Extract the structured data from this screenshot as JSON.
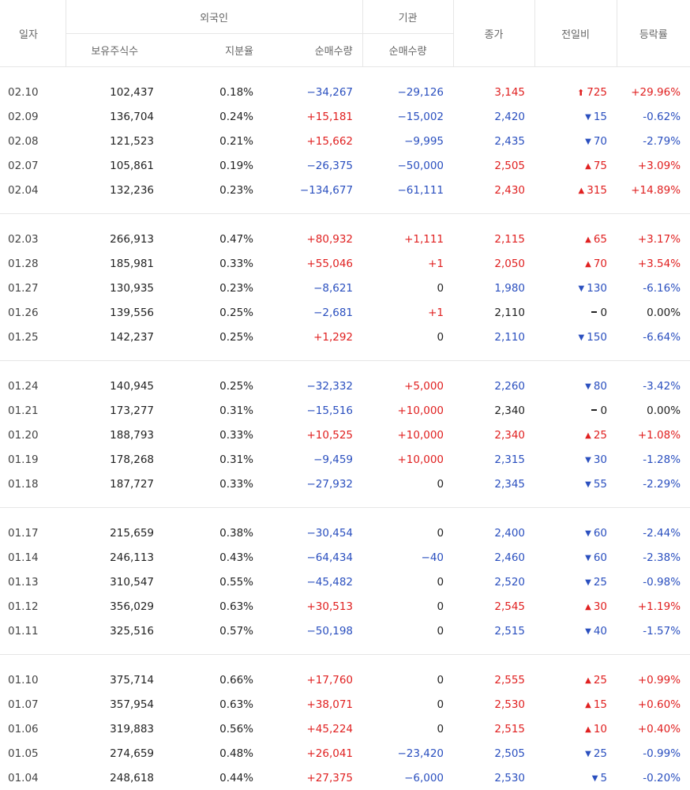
{
  "headers": {
    "date": "일자",
    "foreign": "외국인",
    "institution": "기관",
    "close": "종가",
    "change": "전일비",
    "rate": "등락률",
    "holdings": "보유주식수",
    "share": "지분율",
    "foreign_net": "순매수량",
    "inst_net": "순매수량"
  },
  "colors": {
    "up": "#e02020",
    "down": "#2a4fbf",
    "flat": "#222222"
  },
  "groups": [
    [
      {
        "date": "02.10",
        "holdings": "102,437",
        "share": "0.18%",
        "fnet": "−34,267",
        "fdir": "down",
        "inet": "−29,126",
        "idir": "down",
        "close": "3,145",
        "cdir": "up",
        "chg": "725",
        "chgdir": "upper",
        "rate": "+29.96%",
        "rdir": "up"
      },
      {
        "date": "02.09",
        "holdings": "136,704",
        "share": "0.24%",
        "fnet": "+15,181",
        "fdir": "up",
        "inet": "−15,002",
        "idir": "down",
        "close": "2,420",
        "cdir": "down",
        "chg": "15",
        "chgdir": "down",
        "rate": "-0.62%",
        "rdir": "down"
      },
      {
        "date": "02.08",
        "holdings": "121,523",
        "share": "0.21%",
        "fnet": "+15,662",
        "fdir": "up",
        "inet": "−9,995",
        "idir": "down",
        "close": "2,435",
        "cdir": "down",
        "chg": "70",
        "chgdir": "down",
        "rate": "-2.79%",
        "rdir": "down"
      },
      {
        "date": "02.07",
        "holdings": "105,861",
        "share": "0.19%",
        "fnet": "−26,375",
        "fdir": "down",
        "inet": "−50,000",
        "idir": "down",
        "close": "2,505",
        "cdir": "up",
        "chg": "75",
        "chgdir": "up",
        "rate": "+3.09%",
        "rdir": "up"
      },
      {
        "date": "02.04",
        "holdings": "132,236",
        "share": "0.23%",
        "fnet": "−134,677",
        "fdir": "down",
        "inet": "−61,111",
        "idir": "down",
        "close": "2,430",
        "cdir": "up",
        "chg": "315",
        "chgdir": "up",
        "rate": "+14.89%",
        "rdir": "up"
      }
    ],
    [
      {
        "date": "02.03",
        "holdings": "266,913",
        "share": "0.47%",
        "fnet": "+80,932",
        "fdir": "up",
        "inet": "+1,111",
        "idir": "up",
        "close": "2,115",
        "cdir": "up",
        "chg": "65",
        "chgdir": "up",
        "rate": "+3.17%",
        "rdir": "up"
      },
      {
        "date": "01.28",
        "holdings": "185,981",
        "share": "0.33%",
        "fnet": "+55,046",
        "fdir": "up",
        "inet": "+1",
        "idir": "up",
        "close": "2,050",
        "cdir": "up",
        "chg": "70",
        "chgdir": "up",
        "rate": "+3.54%",
        "rdir": "up"
      },
      {
        "date": "01.27",
        "holdings": "130,935",
        "share": "0.23%",
        "fnet": "−8,621",
        "fdir": "down",
        "inet": "0",
        "idir": "flat",
        "close": "1,980",
        "cdir": "down",
        "chg": "130",
        "chgdir": "down",
        "rate": "-6.16%",
        "rdir": "down"
      },
      {
        "date": "01.26",
        "holdings": "139,556",
        "share": "0.25%",
        "fnet": "−2,681",
        "fdir": "down",
        "inet": "+1",
        "idir": "up",
        "close": "2,110",
        "cdir": "flat",
        "chg": "0",
        "chgdir": "flat",
        "rate": "0.00%",
        "rdir": "flat"
      },
      {
        "date": "01.25",
        "holdings": "142,237",
        "share": "0.25%",
        "fnet": "+1,292",
        "fdir": "up",
        "inet": "0",
        "idir": "flat",
        "close": "2,110",
        "cdir": "down",
        "chg": "150",
        "chgdir": "down",
        "rate": "-6.64%",
        "rdir": "down"
      }
    ],
    [
      {
        "date": "01.24",
        "holdings": "140,945",
        "share": "0.25%",
        "fnet": "−32,332",
        "fdir": "down",
        "inet": "+5,000",
        "idir": "up",
        "close": "2,260",
        "cdir": "down",
        "chg": "80",
        "chgdir": "down",
        "rate": "-3.42%",
        "rdir": "down"
      },
      {
        "date": "01.21",
        "holdings": "173,277",
        "share": "0.31%",
        "fnet": "−15,516",
        "fdir": "down",
        "inet": "+10,000",
        "idir": "up",
        "close": "2,340",
        "cdir": "flat",
        "chg": "0",
        "chgdir": "flat",
        "rate": "0.00%",
        "rdir": "flat"
      },
      {
        "date": "01.20",
        "holdings": "188,793",
        "share": "0.33%",
        "fnet": "+10,525",
        "fdir": "up",
        "inet": "+10,000",
        "idir": "up",
        "close": "2,340",
        "cdir": "up",
        "chg": "25",
        "chgdir": "up",
        "rate": "+1.08%",
        "rdir": "up"
      },
      {
        "date": "01.19",
        "holdings": "178,268",
        "share": "0.31%",
        "fnet": "−9,459",
        "fdir": "down",
        "inet": "+10,000",
        "idir": "up",
        "close": "2,315",
        "cdir": "down",
        "chg": "30",
        "chgdir": "down",
        "rate": "-1.28%",
        "rdir": "down"
      },
      {
        "date": "01.18",
        "holdings": "187,727",
        "share": "0.33%",
        "fnet": "−27,932",
        "fdir": "down",
        "inet": "0",
        "idir": "flat",
        "close": "2,345",
        "cdir": "down",
        "chg": "55",
        "chgdir": "down",
        "rate": "-2.29%",
        "rdir": "down"
      }
    ],
    [
      {
        "date": "01.17",
        "holdings": "215,659",
        "share": "0.38%",
        "fnet": "−30,454",
        "fdir": "down",
        "inet": "0",
        "idir": "flat",
        "close": "2,400",
        "cdir": "down",
        "chg": "60",
        "chgdir": "down",
        "rate": "-2.44%",
        "rdir": "down"
      },
      {
        "date": "01.14",
        "holdings": "246,113",
        "share": "0.43%",
        "fnet": "−64,434",
        "fdir": "down",
        "inet": "−40",
        "idir": "down",
        "close": "2,460",
        "cdir": "down",
        "chg": "60",
        "chgdir": "down",
        "rate": "-2.38%",
        "rdir": "down"
      },
      {
        "date": "01.13",
        "holdings": "310,547",
        "share": "0.55%",
        "fnet": "−45,482",
        "fdir": "down",
        "inet": "0",
        "idir": "flat",
        "close": "2,520",
        "cdir": "down",
        "chg": "25",
        "chgdir": "down",
        "rate": "-0.98%",
        "rdir": "down"
      },
      {
        "date": "01.12",
        "holdings": "356,029",
        "share": "0.63%",
        "fnet": "+30,513",
        "fdir": "up",
        "inet": "0",
        "idir": "flat",
        "close": "2,545",
        "cdir": "up",
        "chg": "30",
        "chgdir": "up",
        "rate": "+1.19%",
        "rdir": "up"
      },
      {
        "date": "01.11",
        "holdings": "325,516",
        "share": "0.57%",
        "fnet": "−50,198",
        "fdir": "down",
        "inet": "0",
        "idir": "flat",
        "close": "2,515",
        "cdir": "down",
        "chg": "40",
        "chgdir": "down",
        "rate": "-1.57%",
        "rdir": "down"
      }
    ],
    [
      {
        "date": "01.10",
        "holdings": "375,714",
        "share": "0.66%",
        "fnet": "+17,760",
        "fdir": "up",
        "inet": "0",
        "idir": "flat",
        "close": "2,555",
        "cdir": "up",
        "chg": "25",
        "chgdir": "up",
        "rate": "+0.99%",
        "rdir": "up"
      },
      {
        "date": "01.07",
        "holdings": "357,954",
        "share": "0.63%",
        "fnet": "+38,071",
        "fdir": "up",
        "inet": "0",
        "idir": "flat",
        "close": "2,530",
        "cdir": "up",
        "chg": "15",
        "chgdir": "up",
        "rate": "+0.60%",
        "rdir": "up"
      },
      {
        "date": "01.06",
        "holdings": "319,883",
        "share": "0.56%",
        "fnet": "+45,224",
        "fdir": "up",
        "inet": "0",
        "idir": "flat",
        "close": "2,515",
        "cdir": "up",
        "chg": "10",
        "chgdir": "up",
        "rate": "+0.40%",
        "rdir": "up"
      },
      {
        "date": "01.05",
        "holdings": "274,659",
        "share": "0.48%",
        "fnet": "+26,041",
        "fdir": "up",
        "inet": "−23,420",
        "idir": "down",
        "close": "2,505",
        "cdir": "down",
        "chg": "25",
        "chgdir": "down",
        "rate": "-0.99%",
        "rdir": "down"
      },
      {
        "date": "01.04",
        "holdings": "248,618",
        "share": "0.44%",
        "fnet": "+27,375",
        "fdir": "up",
        "inet": "−6,000",
        "idir": "down",
        "close": "2,530",
        "cdir": "down",
        "chg": "5",
        "chgdir": "down",
        "rate": "-0.20%",
        "rdir": "down"
      }
    ]
  ]
}
